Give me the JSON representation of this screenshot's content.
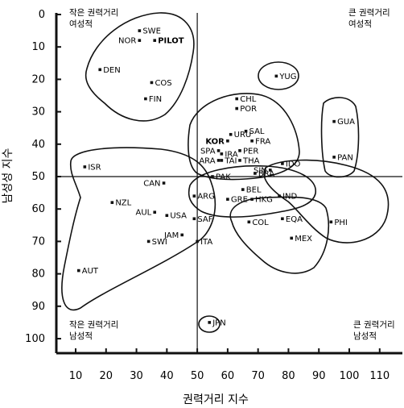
{
  "chart_data": {
    "type": "scatter",
    "xlabel": "권력거리 지수",
    "ylabel": "남성성 지수",
    "xlim": [
      10,
      115
    ],
    "ylim": [
      0,
      100
    ],
    "y_inverted": true,
    "xticks": [
      10,
      20,
      30,
      40,
      50,
      60,
      70,
      80,
      90,
      100,
      110
    ],
    "yticks": [
      0,
      10,
      20,
      30,
      40,
      50,
      60,
      70,
      80,
      90,
      100
    ],
    "reference_lines": {
      "x": 50,
      "y": 50
    },
    "quadrant_labels": {
      "top_left": [
        "작은 권력거리",
        "여성적"
      ],
      "top_right": [
        "큰 권력거리",
        "여성적"
      ],
      "bottom_left": [
        "작은 권력거리",
        "남성적"
      ],
      "bottom_right": [
        "큰 권력거리",
        "남성적"
      ]
    },
    "points": [
      {
        "label": "SWE",
        "x": 31,
        "y": 5
      },
      {
        "label": "NOR",
        "x": 31,
        "y": 8
      },
      {
        "label": "PILOT",
        "x": 36,
        "y": 8
      },
      {
        "label": "DEN",
        "x": 18,
        "y": 17
      },
      {
        "label": "COS",
        "x": 35,
        "y": 21
      },
      {
        "label": "FIN",
        "x": 33,
        "y": 26
      },
      {
        "label": "YUG",
        "x": 76,
        "y": 19
      },
      {
        "label": "CHL",
        "x": 63,
        "y": 26
      },
      {
        "label": "POR",
        "x": 63,
        "y": 29
      },
      {
        "label": "GUA",
        "x": 95,
        "y": 33
      },
      {
        "label": "URU",
        "x": 61,
        "y": 37
      },
      {
        "label": "SAL",
        "x": 66,
        "y": 36
      },
      {
        "label": "KOR",
        "x": 60,
        "y": 39
      },
      {
        "label": "FRA",
        "x": 68,
        "y": 39
      },
      {
        "label": "PER",
        "x": 64,
        "y": 42
      },
      {
        "label": "SPA",
        "x": 57,
        "y": 42
      },
      {
        "label": "THA",
        "x": 64,
        "y": 45
      },
      {
        "label": "ARA",
        "x": 57,
        "y": 45
      },
      {
        "label": "IRA",
        "x": 58,
        "y": 43
      },
      {
        "label": "PAN",
        "x": 95,
        "y": 44
      },
      {
        "label": "ISR",
        "x": 13,
        "y": 47
      },
      {
        "label": "IDO",
        "x": 78,
        "y": 46
      },
      {
        "label": "SIN",
        "x": 74,
        "y": 48
      },
      {
        "label": "PAK",
        "x": 55,
        "y": 50
      },
      {
        "label": "TAI",
        "x": 58,
        "y": 45
      },
      {
        "label": "BRA",
        "x": 69,
        "y": 49
      },
      {
        "label": "CAN",
        "x": 39,
        "y": 52
      },
      {
        "label": "GRE",
        "x": 60,
        "y": 57
      },
      {
        "label": "BEL",
        "x": 65,
        "y": 54
      },
      {
        "label": "ARG",
        "x": 49,
        "y": 56
      },
      {
        "label": "IND",
        "x": 77,
        "y": 56
      },
      {
        "label": "NZL",
        "x": 22,
        "y": 58
      },
      {
        "label": "HKG",
        "x": 68,
        "y": 57
      },
      {
        "label": "COL",
        "x": 67,
        "y": 64
      },
      {
        "label": "EQA",
        "x": 78,
        "y": 63
      },
      {
        "label": "PHI",
        "x": 94,
        "y": 64
      },
      {
        "label": "AUL",
        "x": 36,
        "y": 61
      },
      {
        "label": "USA",
        "x": 40,
        "y": 62
      },
      {
        "label": "SAF",
        "x": 49,
        "y": 63
      },
      {
        "label": "MEX",
        "x": 81,
        "y": 69
      },
      {
        "label": "JAM",
        "x": 45,
        "y": 68
      },
      {
        "label": "ITA",
        "x": 50,
        "y": 70
      },
      {
        "label": "SWI",
        "x": 34,
        "y": 70
      },
      {
        "label": "AUT",
        "x": 11,
        "y": 79
      },
      {
        "label": "JPN",
        "x": 54,
        "y": 95
      }
    ]
  }
}
